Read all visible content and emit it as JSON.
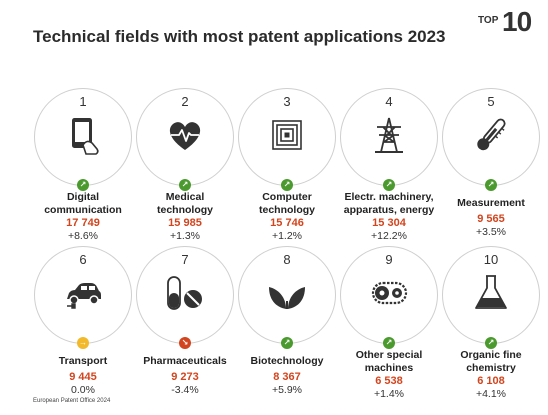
{
  "title": "Technical fields with most patent applications 2023",
  "badge": {
    "prefix": "TOP",
    "number": "10"
  },
  "footer": "European Patent Office 2024",
  "colors": {
    "up": "#4a9a2e",
    "flat": "#f2b92a",
    "down": "#d2451e",
    "value": "#d2451e"
  },
  "chart_data": {
    "type": "table",
    "title": "Technical fields with most patent applications 2023",
    "items": [
      {
        "rank": "1",
        "lines": [
          "Digital",
          "communication"
        ],
        "value": 17749,
        "value_label": "17 749",
        "change": "+8.6%",
        "trend": "up",
        "icon": "smartphone-icon"
      },
      {
        "rank": "2",
        "lines": [
          "Medical",
          "technology"
        ],
        "value": 15985,
        "value_label": "15 985",
        "change": "+1.3%",
        "trend": "up",
        "icon": "heart-pulse-icon"
      },
      {
        "rank": "3",
        "lines": [
          "Computer",
          "technology"
        ],
        "value": 15746,
        "value_label": "15 746",
        "change": "+1.2%",
        "trend": "up",
        "icon": "chip-icon"
      },
      {
        "rank": "4",
        "lines": [
          "Electr. machinery,",
          "apparatus, energy"
        ],
        "value": 15304,
        "value_label": "15 304",
        "change": "+12.2%",
        "trend": "up",
        "icon": "power-pylon-icon"
      },
      {
        "rank": "5",
        "lines": [
          "Measurement"
        ],
        "value": 9565,
        "value_label": "9 565",
        "change": "+3.5%",
        "trend": "up",
        "icon": "thermometer-icon"
      },
      {
        "rank": "6",
        "lines": [
          "Transport"
        ],
        "value": 9445,
        "value_label": "9 445",
        "change": "0.0%",
        "trend": "flat",
        "icon": "electric-car-icon"
      },
      {
        "rank": "7",
        "lines": [
          "Pharmaceuticals"
        ],
        "value": 9273,
        "value_label": "9 273",
        "change": "-3.4%",
        "trend": "down",
        "icon": "pills-icon"
      },
      {
        "rank": "8",
        "lines": [
          "Biotechnology"
        ],
        "value": 8367,
        "value_label": "8 367",
        "change": "+5.9%",
        "trend": "up",
        "icon": "leaves-icon"
      },
      {
        "rank": "9",
        "lines": [
          "Other special",
          "machines"
        ],
        "value": 6538,
        "value_label": "6 538",
        "change": "+1.4%",
        "trend": "up",
        "icon": "gear-chain-icon"
      },
      {
        "rank": "10",
        "lines": [
          "Organic fine",
          "chemistry"
        ],
        "value": 6108,
        "value_label": "6 108",
        "change": "+4.1%",
        "trend": "up",
        "icon": "flask-icon"
      }
    ]
  }
}
